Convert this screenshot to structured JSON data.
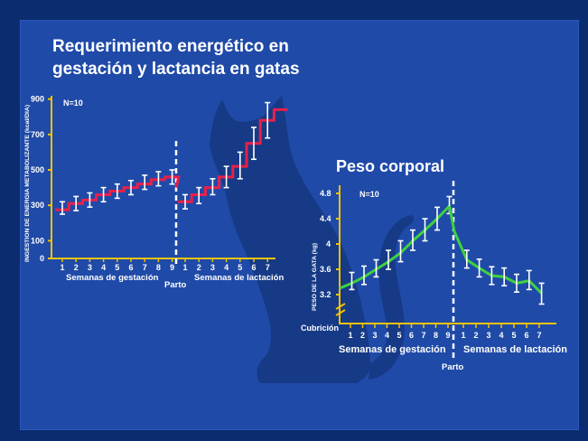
{
  "slide": {
    "title_line1": "Requerimiento energético en",
    "title_line2": "gestación y lactancia en gatas",
    "colors": {
      "background": "#1f4aa8",
      "cat": "#163a86",
      "axis": "#f2c200",
      "energy_series": "#e8204a",
      "weight_series": "#3fd13f",
      "error_bars": "#ffffff"
    },
    "icon": "cat-silhouette-icon"
  },
  "chart_data": [
    {
      "type": "line",
      "ylabel": "INGESTION DE ENERGIA METABOLIZANTE (kcal/DIA)",
      "n_label": "N=10",
      "yticks": [
        "0",
        "100",
        "300",
        "500",
        "700",
        "900"
      ],
      "ylim": [
        0,
        1000
      ],
      "x_ticks_gestacion": [
        "1",
        "2",
        "3",
        "4",
        "5",
        "6",
        "7",
        "8",
        "9"
      ],
      "x_ticks_lactacion": [
        "1",
        "2",
        "3",
        "4",
        "5",
        "6",
        "7"
      ],
      "group_gestacion": "Semanas de gestación",
      "group_lactacion": "Semanas de lactación",
      "event_label": "Parto",
      "gestacion_values": [
        275,
        310,
        330,
        360,
        380,
        400,
        420,
        445,
        460,
        460,
        430,
        400
      ],
      "gestacion_x": [
        0.5,
        1.5,
        2.5,
        3.5,
        4.5,
        5.5,
        6.5,
        7.5,
        8.0,
        8.8,
        9.2,
        9.5
      ],
      "lactacion_values": [
        320,
        360,
        400,
        460,
        520,
        650,
        780,
        840
      ],
      "lactacion_errors": [
        [
          280,
          360
        ],
        [
          310,
          400
        ],
        [
          360,
          450
        ],
        [
          400,
          520
        ],
        [
          450,
          600
        ],
        [
          560,
          740
        ],
        [
          680,
          880
        ],
        [
          720,
          960
        ]
      ],
      "gestacion_errors": [
        [
          250,
          320
        ],
        [
          270,
          350
        ],
        [
          290,
          370
        ],
        [
          320,
          400
        ],
        [
          340,
          420
        ],
        [
          360,
          440
        ],
        [
          390,
          470
        ],
        [
          410,
          490
        ],
        [
          420,
          500
        ]
      ]
    },
    {
      "type": "line",
      "title": "Peso corporal",
      "ylabel": "PESO DE LA GATA (kg)",
      "n_label": "N=10",
      "yticks": [
        "3.2",
        "3.6",
        "4",
        "4.4",
        "4.8"
      ],
      "ylim": [
        3.0,
        4.9
      ],
      "start_label": "Cubrición",
      "x_ticks_gestacion": [
        "1",
        "2",
        "3",
        "4",
        "5",
        "6",
        "7",
        "8",
        "9"
      ],
      "x_ticks_lactacion": [
        "1",
        "2",
        "3",
        "4",
        "5",
        "6",
        "7"
      ],
      "group_gestacion": "Semanas de gestación",
      "group_lactacion": "Semanas de lactación",
      "event_label": "Parto",
      "gestacion_values": [
        3.3,
        3.38,
        3.48,
        3.6,
        3.72,
        3.86,
        4.05,
        4.22,
        4.4,
        4.6
      ],
      "gestacion_errors": [
        [
          3.2,
          3.45
        ],
        [
          3.28,
          3.55
        ],
        [
          3.36,
          3.65
        ],
        [
          3.48,
          3.75
        ],
        [
          3.6,
          3.9
        ],
        [
          3.72,
          4.05
        ],
        [
          3.9,
          4.22
        ],
        [
          4.05,
          4.4
        ],
        [
          4.22,
          4.58
        ],
        [
          4.48,
          4.75
        ]
      ],
      "lactacion_values": [
        4.2,
        3.75,
        3.62,
        3.5,
        3.48,
        3.38,
        3.42,
        3.22
      ],
      "lactacion_errors": [
        [
          4.1,
          4.3
        ],
        [
          3.62,
          3.9
        ],
        [
          3.48,
          3.76
        ],
        [
          3.36,
          3.64
        ],
        [
          3.34,
          3.62
        ],
        [
          3.24,
          3.52
        ],
        [
          3.28,
          3.58
        ],
        [
          3.05,
          3.38
        ]
      ]
    }
  ]
}
